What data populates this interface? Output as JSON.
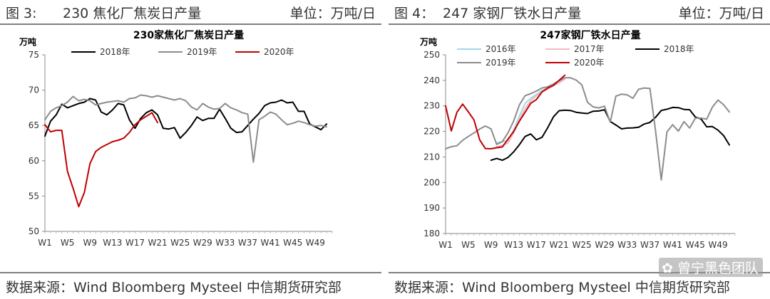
{
  "panels": [
    {
      "fig_label": "图 3:",
      "header_title": "230 焦化厂焦炭日产量",
      "unit": "单位：万吨/日",
      "source": "数据来源：Wind Bloomberg Mysteel 中信期货研究部"
    },
    {
      "fig_label": "图 4：",
      "header_title": "247 家钢厂铁水日产量",
      "unit": "单位：万吨/日",
      "source": "数据来源：Wind Bloomberg Mysteel 中信期货研究部"
    }
  ],
  "watermark": "曾宁黑色团队",
  "chart_data": [
    {
      "type": "line",
      "title": "230家焦化厂焦炭日产量",
      "ylabel": "万吨",
      "ylim": [
        50,
        75
      ],
      "yticks": [
        50,
        55,
        60,
        65,
        70,
        75
      ],
      "xlim": [
        1,
        52
      ],
      "xticks": [
        "W1",
        "W5",
        "W9",
        "W13",
        "W17",
        "W21",
        "W25",
        "W29",
        "W33",
        "W37",
        "W41",
        "W45",
        "W49"
      ],
      "grid": false,
      "legend": "top",
      "series": [
        {
          "name": "2018年",
          "color": "#000000",
          "x": [
            1,
            2,
            3,
            4,
            5,
            6,
            7,
            8,
            9,
            10,
            11,
            12,
            13,
            14,
            15,
            16,
            17,
            18,
            19,
            20,
            21,
            22,
            23,
            24,
            25,
            26,
            27,
            28,
            29,
            30,
            31,
            32,
            33,
            34,
            35,
            36,
            37,
            38,
            39,
            40,
            41,
            42,
            43,
            44,
            45,
            46,
            47,
            48,
            49,
            50,
            51
          ],
          "values": [
            63.5,
            65.6,
            66.5,
            68.0,
            67.5,
            67.8,
            68.1,
            68.3,
            68.8,
            68.6,
            66.9,
            66.5,
            67.2,
            68.1,
            67.9,
            65.8,
            64.6,
            66.0,
            66.8,
            67.2,
            66.5,
            64.6,
            64.5,
            64.7,
            63.2,
            64.0,
            65.0,
            66.2,
            65.7,
            66.0,
            66.0,
            67.3,
            66.0,
            64.6,
            64.0,
            64.1,
            65.0,
            65.9,
            66.7,
            67.8,
            68.2,
            68.3,
            68.6,
            68.2,
            68.3,
            67.0,
            67.0,
            65.2,
            64.8,
            64.4,
            65.2
          ]
        },
        {
          "name": "2019年",
          "color": "#8c8c8c",
          "x": [
            1,
            2,
            3,
            4,
            5,
            6,
            7,
            8,
            9,
            10,
            11,
            12,
            13,
            14,
            15,
            16,
            17,
            18,
            19,
            20,
            21,
            22,
            23,
            24,
            25,
            26,
            27,
            28,
            29,
            30,
            31,
            32,
            33,
            34,
            35,
            36,
            37,
            38,
            39,
            40,
            41,
            42,
            43,
            44,
            45,
            46,
            47,
            48,
            49,
            50,
            51
          ],
          "values": [
            65.8,
            67.0,
            67.5,
            67.8,
            68.3,
            69.1,
            68.5,
            68.7,
            68.5,
            67.9,
            68.1,
            68.3,
            68.4,
            68.5,
            68.3,
            68.8,
            68.9,
            69.3,
            69.2,
            69.0,
            69.2,
            69.0,
            68.8,
            68.6,
            68.8,
            68.5,
            67.6,
            67.2,
            68.1,
            67.6,
            67.3,
            67.4,
            68.1,
            67.5,
            67.2,
            66.8,
            66.6,
            59.8,
            65.8,
            66.3,
            66.9,
            66.6,
            65.8,
            65.1,
            65.3,
            65.6,
            65.4,
            65.1,
            64.9,
            65.0,
            64.8
          ]
        },
        {
          "name": "2020年",
          "color": "#c00000",
          "x": [
            1,
            2,
            3,
            4,
            5,
            6,
            7,
            8,
            9,
            10,
            11,
            12,
            13,
            14,
            15,
            16,
            17,
            18,
            19,
            20,
            21
          ],
          "values": [
            65.1,
            64.1,
            64.3,
            64.3,
            58.5,
            56.1,
            53.5,
            55.5,
            59.6,
            61.3,
            61.9,
            62.3,
            62.7,
            62.9,
            63.2,
            64.0,
            65.1,
            65.8,
            66.3,
            66.8,
            65.4
          ]
        }
      ]
    },
    {
      "type": "line",
      "title": "247家钢厂铁水日产量",
      "ylabel": "万吨",
      "ylim": [
        180,
        250
      ],
      "yticks": [
        180,
        190,
        200,
        210,
        220,
        230,
        240,
        250
      ],
      "xlim": [
        1,
        52
      ],
      "xticks": [
        "W1",
        "W5",
        "W9",
        "W13",
        "W17",
        "W21",
        "W25",
        "W29",
        "W33",
        "W37",
        "W41",
        "W45",
        "W49"
      ],
      "grid": false,
      "legend": "top",
      "series": [
        {
          "name": "2016年",
          "color": "#9fd9ea",
          "x": [
            10,
            11,
            12,
            13,
            14,
            15,
            16,
            17,
            18,
            19,
            20,
            21,
            22
          ],
          "values": [
            215.5,
            216.0,
            216.3,
            220.5,
            226.0,
            231.0,
            233.0,
            234.5,
            236.0,
            237.0,
            238.5,
            239.5,
            241.0
          ]
        },
        {
          "name": "2017年",
          "color": "#f4b6c2",
          "x": [
            10,
            11,
            12,
            13,
            14,
            15,
            16,
            17,
            18,
            19,
            20,
            21,
            22
          ],
          "values": [
            214.0,
            214.5,
            215.5,
            219.5,
            224.5,
            229.0,
            232.0,
            234.0,
            235.5,
            236.5,
            238.0,
            239.0,
            240.5
          ]
        },
        {
          "name": "2018年",
          "color": "#000000",
          "x": [
            9,
            10,
            11,
            12,
            13,
            14,
            15,
            16,
            17,
            18,
            19,
            20,
            21,
            22,
            23,
            24,
            25,
            26,
            27,
            28,
            29,
            30,
            31,
            32,
            33,
            34,
            35,
            36,
            37,
            38,
            39,
            40,
            41,
            42,
            43,
            44,
            45,
            46,
            47,
            48,
            49,
            50,
            51
          ],
          "values": [
            208.7,
            209.4,
            208.7,
            209.8,
            212.0,
            214.8,
            218.0,
            219.0,
            216.7,
            217.7,
            221.5,
            225.7,
            228.1,
            228.3,
            228.2,
            227.5,
            227.2,
            227.0,
            227.9,
            228.0,
            228.5,
            223.9,
            222.5,
            221.0,
            221.3,
            221.4,
            221.6,
            222.9,
            223.5,
            225.5,
            228.2,
            228.7,
            229.4,
            229.3,
            228.6,
            228.5,
            225.6,
            224.9,
            221.8,
            221.9,
            220.5,
            218.3,
            214.7
          ]
        },
        {
          "name": "2019年",
          "color": "#8c8c8c",
          "x": [
            1,
            2,
            3,
            4,
            5,
            6,
            7,
            8,
            9,
            10,
            11,
            12,
            13,
            14,
            15,
            16,
            17,
            18,
            19,
            20,
            21,
            22,
            23,
            24,
            25,
            26,
            27,
            28,
            29,
            30,
            31,
            32,
            33,
            34,
            35,
            36,
            37,
            38,
            39,
            40,
            41,
            42,
            43,
            44,
            45,
            46,
            47,
            48,
            49,
            50,
            51
          ],
          "values": [
            213.2,
            214.0,
            214.4,
            216.5,
            218.0,
            219.4,
            220.9,
            222.1,
            221.0,
            214.9,
            216.0,
            219.5,
            224.1,
            230.4,
            234.0,
            234.8,
            235.8,
            237.0,
            237.5,
            238.6,
            239.9,
            241.0,
            241.0,
            240.1,
            238.2,
            231.4,
            229.6,
            229.2,
            229.9,
            223.6,
            233.8,
            234.6,
            234.3,
            233.0,
            236.5,
            237.0,
            236.8,
            220.2,
            201.0,
            219.8,
            222.6,
            220.1,
            223.8,
            221.3,
            225.2,
            225.2,
            224.8,
            229.5,
            232.3,
            230.4,
            227.6
          ]
        },
        {
          "name": "2020年",
          "color": "#c00000",
          "x": [
            1,
            2,
            3,
            4,
            5,
            6,
            7,
            8,
            9,
            10,
            11,
            12,
            13,
            14,
            15,
            16,
            17,
            18,
            19,
            20,
            21,
            22
          ],
          "values": [
            230.0,
            220.2,
            227.5,
            230.7,
            227.7,
            224.5,
            216.7,
            213.3,
            213.2,
            213.6,
            213.9,
            217.0,
            220.0,
            224.0,
            227.5,
            231.0,
            232.5,
            235.5,
            237.0,
            238.0,
            240.0,
            242.0
          ]
        }
      ]
    }
  ]
}
